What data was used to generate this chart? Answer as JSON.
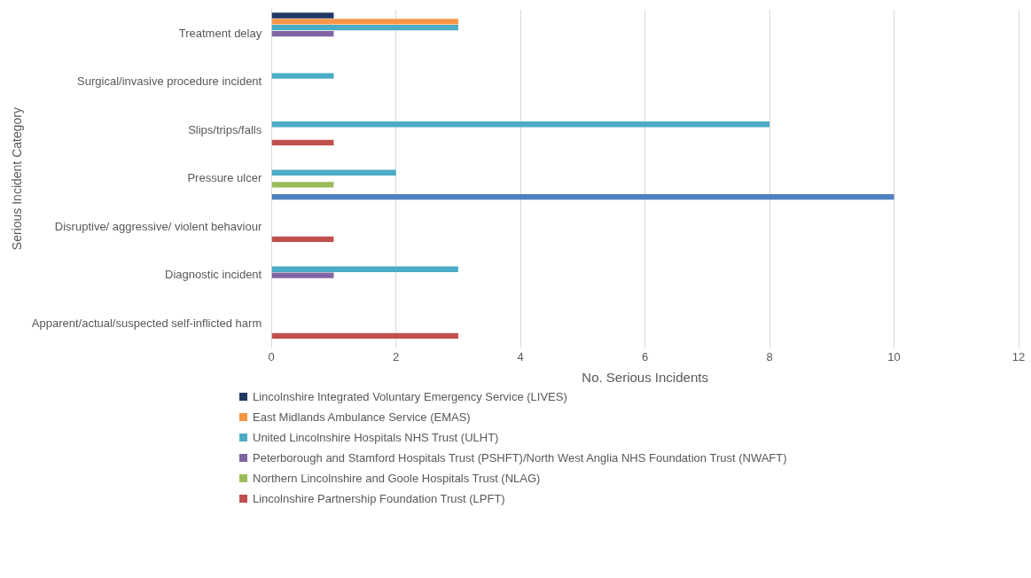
{
  "chart_data": {
    "type": "bar",
    "orientation": "horizontal",
    "xlabel": "No. Serious Incidents",
    "ylabel": "Serious Incident Category",
    "categories": [
      "Treatment delay",
      "Surgical/invasive procedure incident",
      "Slips/trips/falls",
      "Pressure ulcer",
      "Disruptive/ aggressive/ violent behaviour",
      "Diagnostic incident",
      "Apparent/actual/suspected self-inflicted harm"
    ],
    "series": [
      {
        "name": "Lincolnshire Integrated Voluntary Emergency Service (LIVES)",
        "color": "#1f3864",
        "values": [
          1,
          null,
          null,
          null,
          null,
          null,
          null
        ]
      },
      {
        "name": "East Midlands Ambulance Service (EMAS)",
        "color": "#f79646",
        "values": [
          3,
          null,
          null,
          null,
          null,
          null,
          null
        ]
      },
      {
        "name": "United Lincolnshire Hospitals NHS Trust (ULHT)",
        "color": "#4bacc6",
        "values": [
          3,
          1,
          8,
          2,
          null,
          3,
          null
        ]
      },
      {
        "name": "Peterborough and Stamford Hospitals Trust (PSHFT)/North West Anglia NHS Foundation Trust (NWAFT)",
        "color": "#8064a2",
        "values": [
          1,
          null,
          null,
          null,
          null,
          1,
          null
        ]
      },
      {
        "name": "Northern Lincolnshire and Goole Hospitals Trust (NLAG)",
        "color": "#9bbb59",
        "values": [
          null,
          null,
          null,
          1,
          null,
          null,
          null
        ]
      },
      {
        "name": "Lincolnshire Partnership Foundation Trust (LPFT)",
        "color": "#c0504d",
        "values": [
          null,
          null,
          1,
          null,
          1,
          null,
          3
        ]
      },
      {
        "color": "#4f81bd",
        "values": [
          null,
          null,
          null,
          10,
          null,
          null,
          null
        ]
      }
    ],
    "xlim": [
      0,
      12
    ],
    "xticks": [
      0,
      2,
      4,
      6,
      8,
      10,
      12
    ],
    "grid": "x",
    "legend": "bottom"
  }
}
